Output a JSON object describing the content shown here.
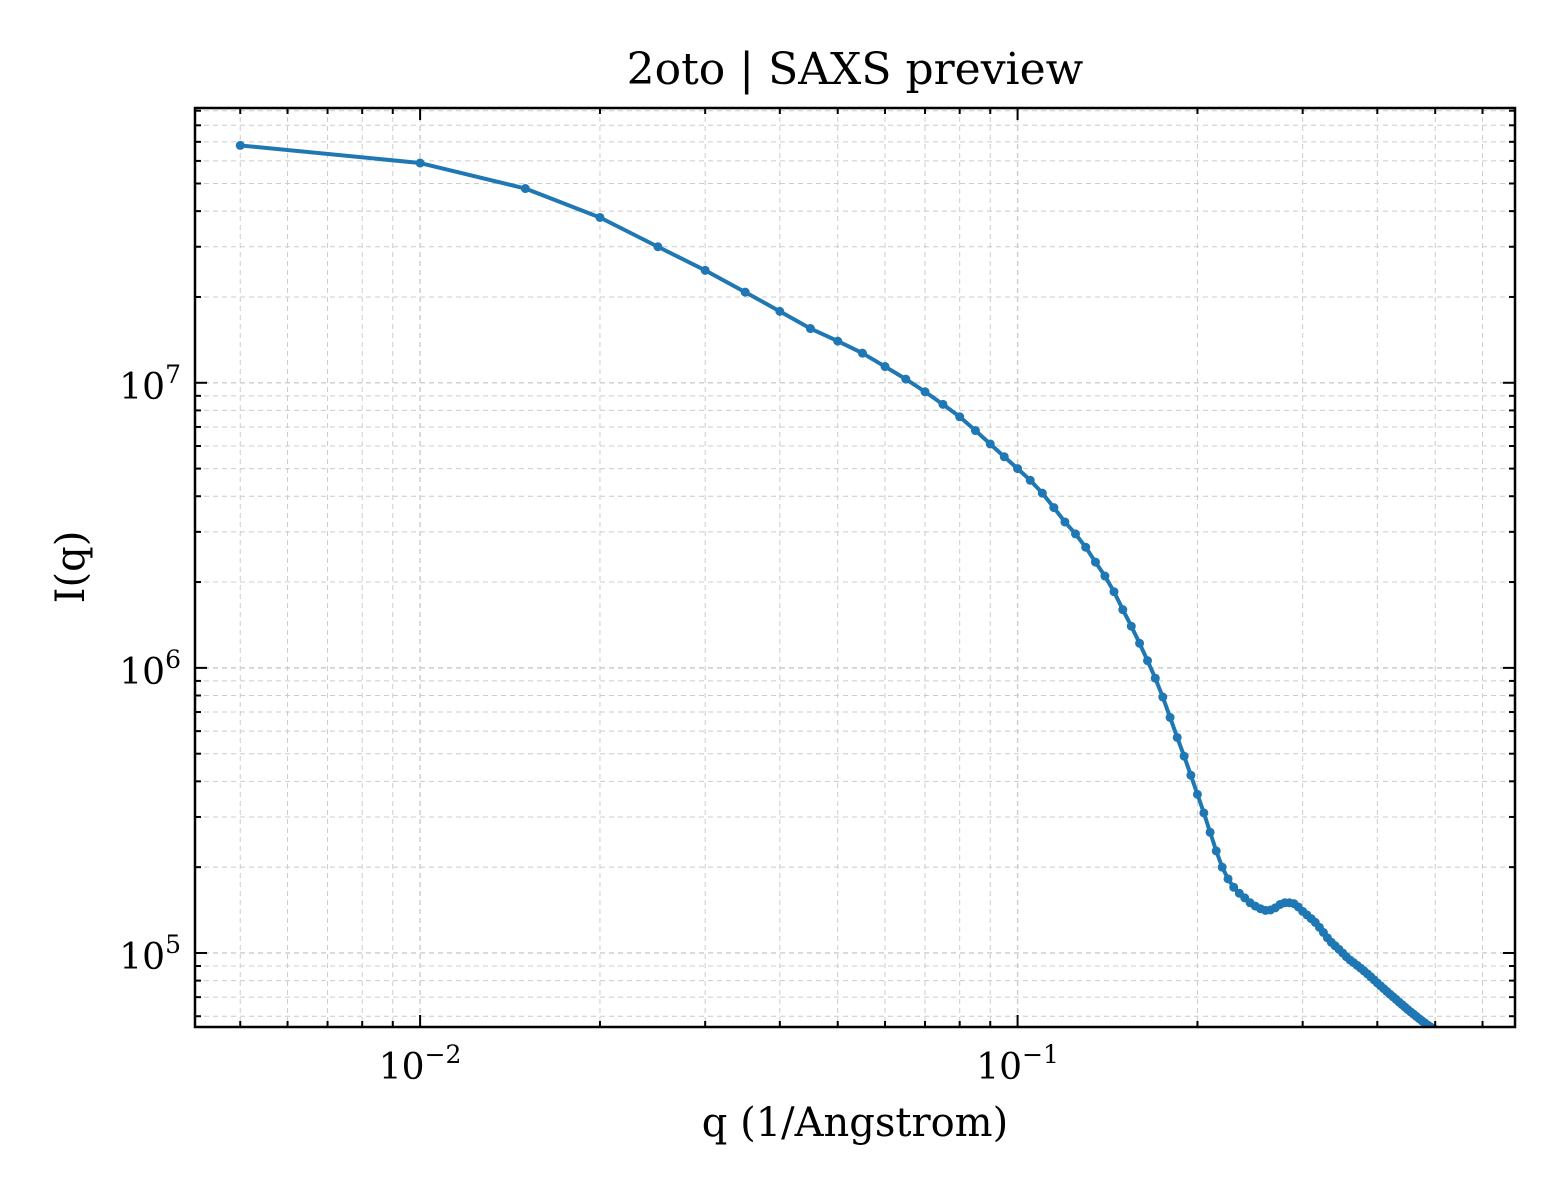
{
  "chart_data": {
    "type": "line",
    "title": "2oto | SAXS preview",
    "xlabel": "q (1/Angstrom)",
    "ylabel": "I(q)",
    "xscale": "log",
    "yscale": "log",
    "xlim": [
      0.0042,
      0.68
    ],
    "ylim": [
      55000,
      92000000
    ],
    "grid": true,
    "x_ticks": [
      {
        "value": 0.01,
        "base": "10",
        "exp": "−2"
      },
      {
        "value": 0.1,
        "base": "10",
        "exp": "−1"
      }
    ],
    "y_ticks": [
      {
        "value": 100000,
        "base": "10",
        "exp": "5"
      },
      {
        "value": 1000000,
        "base": "10",
        "exp": "6"
      },
      {
        "value": 10000000,
        "base": "10",
        "exp": "7"
      }
    ],
    "colors": {
      "series": "#1f77b4",
      "grid": "#cccccc",
      "axes": "#000000"
    },
    "series": [
      {
        "x": [
          0.005,
          0.01,
          0.015,
          0.02,
          0.025,
          0.03,
          0.035,
          0.04,
          0.045,
          0.05,
          0.055,
          0.06,
          0.065,
          0.07,
          0.075,
          0.08,
          0.085,
          0.09,
          0.095,
          0.1,
          0.105,
          0.11,
          0.115,
          0.12,
          0.125,
          0.13,
          0.135,
          0.14,
          0.145,
          0.15,
          0.155,
          0.16,
          0.165,
          0.17,
          0.175,
          0.18,
          0.185,
          0.19,
          0.195,
          0.2,
          0.205,
          0.21,
          0.215,
          0.22,
          0.225,
          0.23,
          0.235,
          0.24,
          0.245,
          0.25,
          0.255,
          0.26,
          0.265,
          0.27,
          0.275,
          0.28,
          0.285,
          0.29,
          0.295,
          0.3,
          0.305,
          0.31,
          0.315,
          0.32,
          0.325,
          0.33,
          0.335,
          0.34,
          0.345,
          0.35,
          0.355,
          0.36,
          0.365,
          0.37,
          0.375,
          0.38,
          0.385,
          0.39,
          0.395,
          0.4,
          0.405,
          0.41,
          0.415,
          0.42,
          0.425,
          0.43,
          0.435,
          0.44,
          0.445,
          0.45,
          0.455,
          0.46,
          0.465,
          0.47,
          0.475,
          0.48,
          0.485,
          0.49,
          0.495,
          0.5
        ],
        "values": [
          68000000,
          59000000,
          48000000,
          38000000,
          30000000,
          24800000,
          20800000,
          17800000,
          15500000,
          14000000,
          12700000,
          11400000,
          10300000,
          9300000,
          8400000,
          7600000,
          6800000,
          6100000,
          5500000,
          5000000,
          4550000,
          4100000,
          3650000,
          3250000,
          2950000,
          2650000,
          2350000,
          2100000,
          1850000,
          1600000,
          1400000,
          1220000,
          1060000,
          920000,
          790000,
          670000,
          570000,
          490000,
          420000,
          360000,
          310000,
          265000,
          228000,
          200000,
          182000,
          170000,
          162000,
          156000,
          150000,
          146000,
          143000,
          141000,
          141500,
          144000,
          148000,
          150000,
          150000,
          149000,
          145000,
          140000,
          136000,
          132000,
          128000,
          123000,
          118000,
          113000,
          109000,
          106000,
          103000,
          100000,
          97000,
          94500,
          92500,
          90500,
          88500,
          86500,
          84500,
          82500,
          80500,
          78500,
          76700,
          75000,
          73300,
          71700,
          70200,
          68700,
          67300,
          65900,
          64600,
          63300,
          62100,
          61000,
          59900,
          58800,
          57800,
          56900,
          56000,
          55200,
          54500,
          53800
        ]
      }
    ]
  }
}
